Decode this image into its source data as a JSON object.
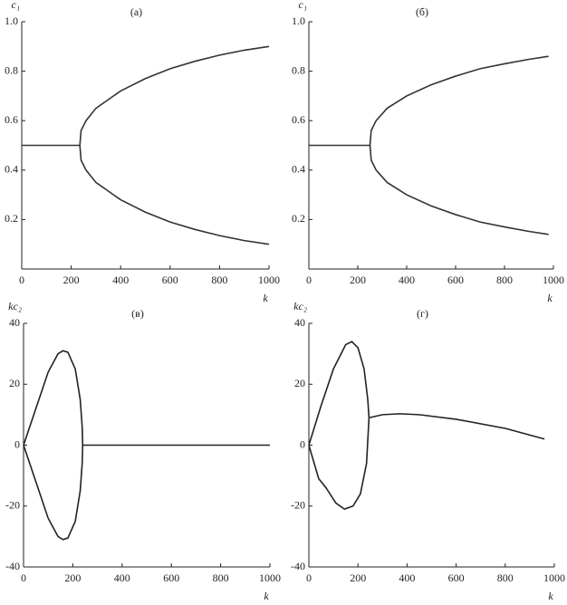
{
  "chart_data": [
    {
      "type": "line",
      "title": "(а)",
      "y_label": "c₁",
      "x_label": "k",
      "xlim": [
        0,
        1000
      ],
      "xticks": [
        0,
        200,
        400,
        600,
        800,
        1000
      ],
      "ylim": [
        0,
        1
      ],
      "yticks": [
        0.2,
        0.4,
        0.6,
        0.8,
        {
          "value": 1,
          "label": "1.0"
        }
      ],
      "series": [
        {
          "color": "#333333",
          "x": [
            0,
            235
          ],
          "values": [
            0.5,
            0.5
          ]
        },
        {
          "color": "#333333",
          "x": [
            235,
            240,
            260,
            300,
            400,
            500,
            600,
            700,
            800,
            900,
            1000
          ],
          "values": [
            0.5,
            0.56,
            0.6,
            0.65,
            0.72,
            0.77,
            0.81,
            0.84,
            0.865,
            0.885,
            0.9
          ]
        },
        {
          "color": "#333333",
          "x": [
            235,
            240,
            260,
            300,
            400,
            500,
            600,
            700,
            800,
            900,
            1000
          ],
          "values": [
            0.5,
            0.44,
            0.4,
            0.35,
            0.28,
            0.23,
            0.19,
            0.16,
            0.135,
            0.115,
            0.1
          ]
        }
      ]
    },
    {
      "type": "line",
      "title": "(б)",
      "y_label": "c₁",
      "x_label": "k",
      "xlim": [
        0,
        1000
      ],
      "xticks": [
        0,
        200,
        400,
        600,
        800,
        1000
      ],
      "ylim": [
        0,
        1
      ],
      "yticks": [
        0.2,
        0.4,
        0.6,
        0.8,
        {
          "value": 1,
          "label": "1.0"
        }
      ],
      "series": [
        {
          "color": "#333333",
          "x": [
            0,
            250
          ],
          "values": [
            0.5,
            0.5
          ]
        },
        {
          "color": "#333333",
          "x": [
            250,
            255,
            275,
            320,
            400,
            500,
            600,
            700,
            800,
            900,
            980
          ],
          "values": [
            0.5,
            0.56,
            0.6,
            0.65,
            0.7,
            0.745,
            0.78,
            0.81,
            0.83,
            0.848,
            0.86
          ]
        },
        {
          "color": "#333333",
          "x": [
            250,
            255,
            275,
            320,
            400,
            500,
            600,
            700,
            800,
            900,
            980
          ],
          "values": [
            0.5,
            0.44,
            0.4,
            0.35,
            0.3,
            0.255,
            0.22,
            0.19,
            0.17,
            0.152,
            0.14
          ]
        }
      ]
    },
    {
      "type": "line",
      "title": "(в)",
      "y_label": "kc₂",
      "x_label": "k",
      "xlim": [
        0,
        1000
      ],
      "xticks": [
        0,
        200,
        400,
        600,
        800,
        1000
      ],
      "ylim": [
        -40,
        40
      ],
      "yticks": [
        -40,
        -20,
        0,
        20,
        40
      ],
      "series": [
        {
          "color": "#222222",
          "x": [
            0,
            50,
            100,
            140,
            160,
            180,
            210,
            230,
            238,
            240
          ],
          "values": [
            0,
            12,
            24,
            30,
            31,
            30.5,
            25,
            15,
            6,
            0
          ]
        },
        {
          "color": "#222222",
          "x": [
            0,
            50,
            100,
            140,
            160,
            180,
            210,
            230,
            238,
            240
          ],
          "values": [
            0,
            -12,
            -24,
            -30,
            -31,
            -30.5,
            -25,
            -15,
            -6,
            0
          ]
        },
        {
          "color": "#222222",
          "x": [
            240,
            1000
          ],
          "values": [
            0,
            0
          ]
        }
      ]
    },
    {
      "type": "line",
      "title": "(г)",
      "y_label": "kc₂",
      "x_label": "k",
      "xlim": [
        0,
        1000
      ],
      "xticks": [
        0,
        200,
        400,
        600,
        800,
        1000
      ],
      "ylim": [
        -40,
        40
      ],
      "yticks": [
        -40,
        -20,
        0,
        20,
        40
      ],
      "series": [
        {
          "color": "#222222",
          "x": [
            0,
            50,
            100,
            150,
            175,
            200,
            225,
            240,
            245
          ],
          "values": [
            0,
            13,
            25,
            33,
            34,
            32,
            25,
            15,
            9
          ]
        },
        {
          "color": "#222222",
          "x": [
            0,
            40,
            70,
            110,
            145,
            180,
            210,
            235,
            245
          ],
          "values": [
            0,
            -11,
            -14,
            -19,
            -21,
            -20,
            -16,
            -6,
            9
          ]
        },
        {
          "color": "#222222",
          "x": [
            245,
            300,
            370,
            450,
            600,
            800,
            960
          ],
          "values": [
            9,
            10,
            10.3,
            10,
            8.5,
            5.5,
            2
          ]
        }
      ]
    }
  ]
}
